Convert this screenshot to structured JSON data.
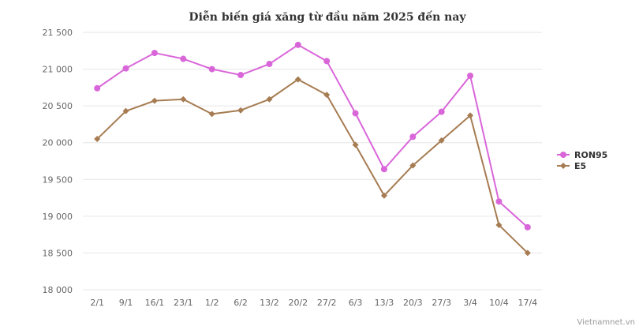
{
  "chart_data": {
    "type": "line",
    "title": "Diễn biến giá xăng từ đầu năm 2025 đến nay",
    "categories": [
      "2/1",
      "9/1",
      "16/1",
      "23/1",
      "1/2",
      "6/2",
      "13/2",
      "20/2",
      "27/2",
      "6/3",
      "13/3",
      "20/3",
      "27/3",
      "3/4",
      "10/4",
      "17/4"
    ],
    "y_ticks": [
      "18 000",
      "18 500",
      "19 000",
      "19 500",
      "20 000",
      "20 500",
      "21 000",
      "21 500"
    ],
    "ylim": [
      18000,
      21500
    ],
    "grid": true,
    "legend_position": "right",
    "series": [
      {
        "name": "RON95",
        "color": "#d966d9",
        "marker": "circle",
        "values": [
          20740,
          21010,
          21220,
          21140,
          21000,
          20920,
          21070,
          21330,
          21110,
          20400,
          19640,
          20080,
          20420,
          20910,
          19200,
          18850
        ]
      },
      {
        "name": "E5",
        "color": "#a67c52",
        "marker": "diamond",
        "values": [
          20050,
          20430,
          20570,
          20590,
          20390,
          20440,
          20590,
          20860,
          20650,
          19970,
          19280,
          19690,
          20030,
          20370,
          18880,
          18500
        ]
      }
    ]
  },
  "credit": "Vietnamnet.vn"
}
